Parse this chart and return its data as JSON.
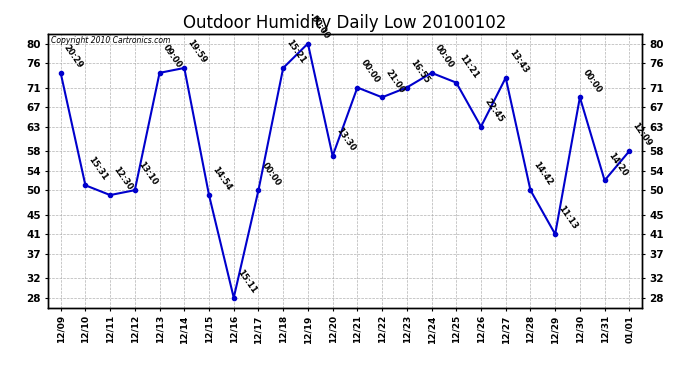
{
  "title": "Outdoor Humidity Daily Low 20100102",
  "copyright": "Copyright 2010 Cartronics.com",
  "x_labels": [
    "12/09",
    "12/10",
    "12/11",
    "12/12",
    "12/13",
    "12/14",
    "12/15",
    "12/16",
    "12/17",
    "12/18",
    "12/19",
    "12/20",
    "12/21",
    "12/22",
    "12/23",
    "12/24",
    "12/25",
    "12/26",
    "12/27",
    "12/28",
    "12/29",
    "12/30",
    "12/31",
    "01/01"
  ],
  "y_values": [
    74,
    51,
    49,
    50,
    74,
    75,
    49,
    28,
    50,
    75,
    80,
    57,
    71,
    69,
    71,
    74,
    72,
    63,
    73,
    50,
    41,
    69,
    52,
    58
  ],
  "point_labels": [
    "20:29",
    "15:31",
    "12:30",
    "13:10",
    "09:00",
    "19:59",
    "14:54",
    "15:11",
    "00:00",
    "15:21",
    "00:00",
    "13:30",
    "00:00",
    "21:00",
    "16:55",
    "00:00",
    "11:21",
    "22:45",
    "13:43",
    "14:42",
    "11:13",
    "00:00",
    "14:20",
    "12:09"
  ],
  "ylim": [
    26,
    82
  ],
  "yticks": [
    28,
    32,
    37,
    41,
    45,
    50,
    54,
    58,
    63,
    67,
    71,
    76,
    80
  ],
  "line_color": "#0000cc",
  "marker_color": "#0000cc",
  "background_color": "#ffffff",
  "grid_color": "#aaaaaa",
  "title_fontsize": 12,
  "label_fontsize": 7.5
}
